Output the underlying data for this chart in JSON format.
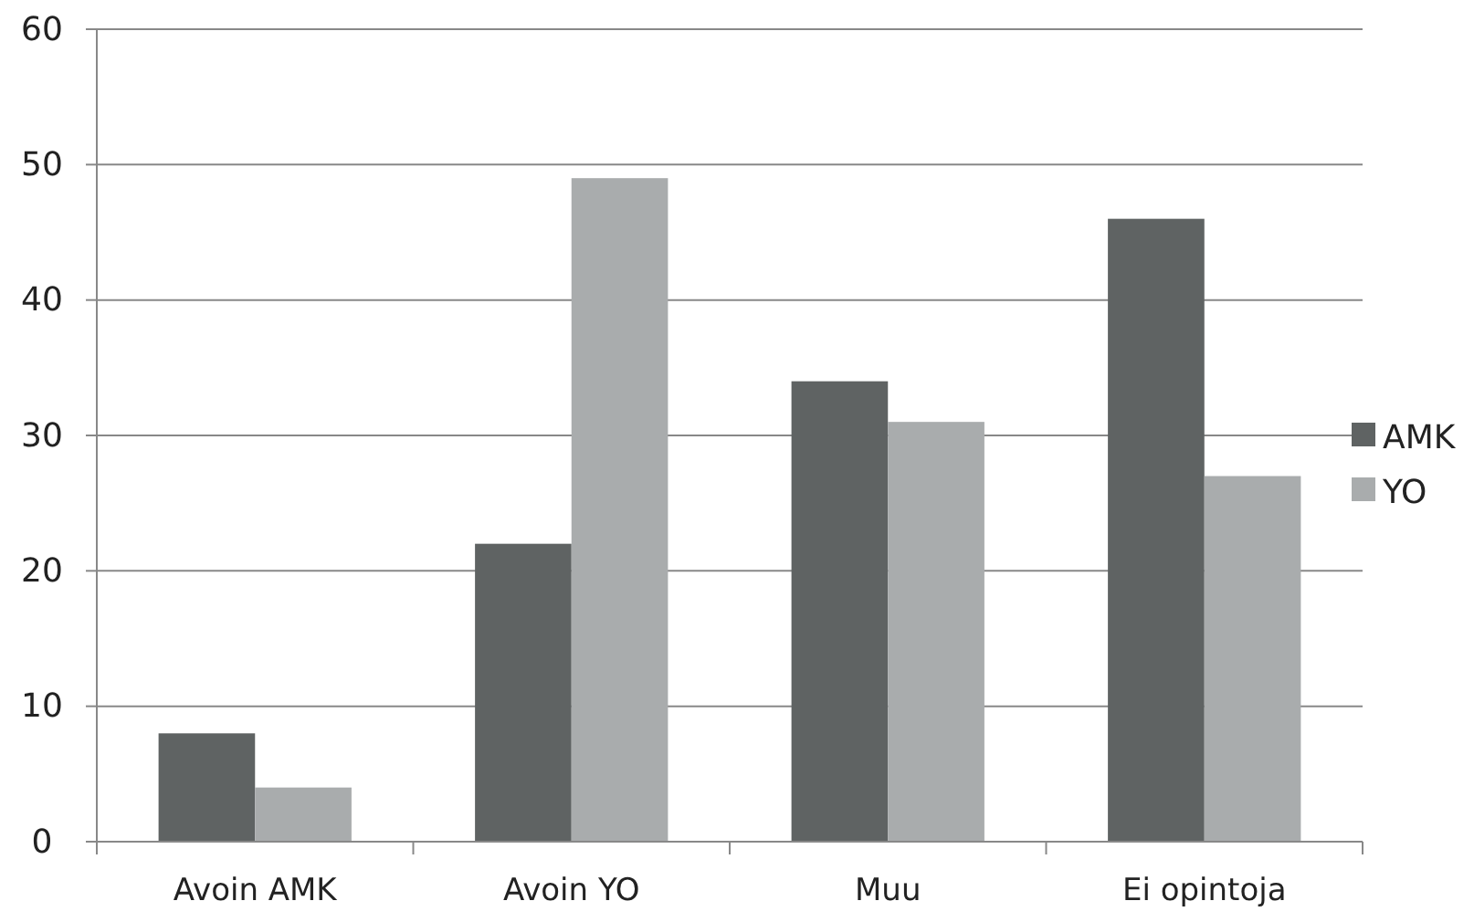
{
  "chart_data": {
    "type": "bar",
    "categories": [
      "Avoin AMK",
      "Avoin YO",
      "Muu",
      "Ei opintoja"
    ],
    "series": [
      {
        "name": "AMK",
        "color": "#5f6363",
        "values": [
          8,
          22,
          34,
          46
        ]
      },
      {
        "name": "YO",
        "color": "#a9acad",
        "values": [
          4,
          49,
          31,
          27
        ]
      }
    ],
    "ylim": [
      0,
      60
    ],
    "yticks": [
      0,
      10,
      20,
      30,
      40,
      50,
      60
    ],
    "grid": "y",
    "legend": "right"
  }
}
